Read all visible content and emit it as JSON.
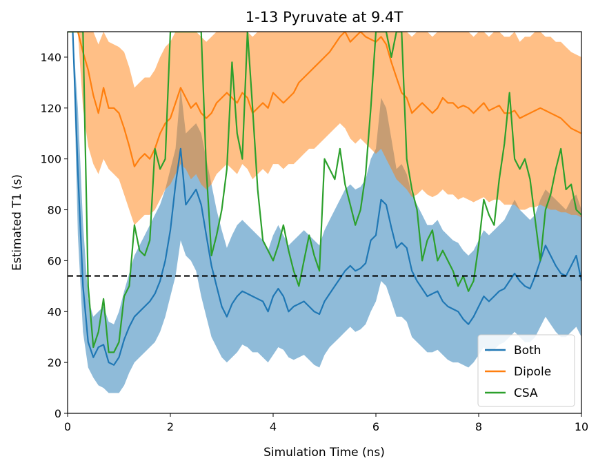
{
  "chart_data": {
    "type": "line",
    "title": "1-13 Pyruvate at 9.4T",
    "xlabel": "Simulation Time (ns)",
    "ylabel": "Estimated T1 (s)",
    "xlim": [
      0,
      10
    ],
    "ylim": [
      0,
      150
    ],
    "x_ticks": [
      0,
      2,
      4,
      6,
      8,
      10
    ],
    "y_ticks": [
      0,
      20,
      40,
      60,
      80,
      100,
      120,
      140
    ],
    "legend_position": "lower-right",
    "grid": false,
    "reference_line": {
      "y": 54,
      "style": "dashed",
      "color": "#000000"
    },
    "series": [
      {
        "name": "Both",
        "color": "#1f77b4",
        "band_color": "#1f77b4",
        "x": [
          0.0,
          0.1,
          0.2,
          0.3,
          0.4,
          0.5,
          0.6,
          0.7,
          0.8,
          0.9,
          1.0,
          1.1,
          1.2,
          1.3,
          1.4,
          1.5,
          1.6,
          1.7,
          1.8,
          1.9,
          2.0,
          2.1,
          2.2,
          2.3,
          2.4,
          2.5,
          2.6,
          2.7,
          2.8,
          2.9,
          3.0,
          3.1,
          3.2,
          3.3,
          3.4,
          3.5,
          3.6,
          3.7,
          3.8,
          3.9,
          4.0,
          4.1,
          4.2,
          4.3,
          4.4,
          4.5,
          4.6,
          4.7,
          4.8,
          4.9,
          5.0,
          5.1,
          5.2,
          5.3,
          5.4,
          5.5,
          5.6,
          5.7,
          5.8,
          5.9,
          6.0,
          6.1,
          6.2,
          6.3,
          6.4,
          6.5,
          6.6,
          6.7,
          6.8,
          6.9,
          7.0,
          7.1,
          7.2,
          7.3,
          7.4,
          7.5,
          7.6,
          7.7,
          7.8,
          7.9,
          8.0,
          8.1,
          8.2,
          8.3,
          8.4,
          8.5,
          8.6,
          8.7,
          8.8,
          8.9,
          9.0,
          9.1,
          9.2,
          9.3,
          9.4,
          9.5,
          9.6,
          9.7,
          9.8,
          9.9,
          10.0
        ],
        "y": [
          150,
          150,
          95,
          50,
          28,
          22,
          26,
          27,
          20,
          19,
          22,
          29,
          34,
          38,
          40,
          42,
          44,
          47,
          52,
          60,
          72,
          90,
          104,
          82,
          85,
          88,
          82,
          70,
          58,
          50,
          42,
          38,
          43,
          46,
          48,
          47,
          46,
          45,
          44,
          40,
          46,
          49,
          46,
          40,
          42,
          43,
          44,
          42,
          40,
          39,
          44,
          47,
          50,
          53,
          56,
          58,
          56,
          57,
          59,
          68,
          70,
          84,
          82,
          73,
          65,
          67,
          65,
          56,
          52,
          49,
          46,
          47,
          48,
          44,
          42,
          41,
          40,
          37,
          35,
          38,
          42,
          46,
          44,
          46,
          48,
          49,
          52,
          55,
          52,
          50,
          49,
          54,
          60,
          66,
          62,
          58,
          55,
          54,
          58,
          62,
          52
        ],
        "lower": [
          150,
          150,
          70,
          32,
          18,
          14,
          11,
          10,
          8,
          8,
          8,
          11,
          16,
          20,
          22,
          24,
          26,
          28,
          32,
          38,
          46,
          54,
          68,
          62,
          60,
          56,
          46,
          38,
          30,
          26,
          22,
          20,
          22,
          24,
          27,
          26,
          24,
          24,
          22,
          20,
          23,
          26,
          25,
          22,
          21,
          22,
          23,
          21,
          19,
          18,
          23,
          26,
          28,
          30,
          32,
          34,
          32,
          33,
          35,
          40,
          44,
          52,
          50,
          44,
          38,
          38,
          36,
          30,
          28,
          26,
          24,
          24,
          25,
          23,
          21,
          20,
          20,
          19,
          18,
          20,
          23,
          26,
          24,
          25,
          27,
          28,
          30,
          32,
          30,
          28,
          28,
          30,
          34,
          38,
          35,
          32,
          30,
          30,
          32,
          34,
          30
        ],
        "upper": [
          150,
          150,
          120,
          75,
          45,
          38,
          40,
          42,
          36,
          35,
          40,
          48,
          55,
          62,
          66,
          70,
          74,
          78,
          82,
          88,
          96,
          104,
          128,
          110,
          112,
          114,
          110,
          100,
          90,
          80,
          72,
          65,
          70,
          74,
          76,
          74,
          72,
          70,
          68,
          64,
          70,
          74,
          70,
          66,
          68,
          70,
          72,
          70,
          68,
          66,
          72,
          76,
          80,
          84,
          88,
          90,
          88,
          89,
          92,
          100,
          104,
          124,
          120,
          108,
          96,
          98,
          94,
          86,
          82,
          78,
          74,
          74,
          76,
          72,
          70,
          68,
          67,
          64,
          62,
          64,
          68,
          72,
          70,
          72,
          74,
          76,
          80,
          84,
          80,
          78,
          76,
          78,
          84,
          88,
          86,
          84,
          82,
          80,
          84,
          86,
          80
        ]
      },
      {
        "name": "Dipole",
        "color": "#ff7f0e",
        "band_color": "#ff7f0e",
        "x": [
          0.0,
          0.1,
          0.2,
          0.3,
          0.4,
          0.5,
          0.6,
          0.7,
          0.8,
          0.9,
          1.0,
          1.1,
          1.2,
          1.3,
          1.4,
          1.5,
          1.6,
          1.7,
          1.8,
          1.9,
          2.0,
          2.1,
          2.2,
          2.3,
          2.4,
          2.5,
          2.6,
          2.7,
          2.8,
          2.9,
          3.0,
          3.1,
          3.2,
          3.3,
          3.4,
          3.5,
          3.6,
          3.7,
          3.8,
          3.9,
          4.0,
          4.1,
          4.2,
          4.3,
          4.4,
          4.5,
          4.6,
          4.7,
          4.8,
          4.9,
          5.0,
          5.1,
          5.2,
          5.3,
          5.4,
          5.5,
          5.6,
          5.7,
          5.8,
          5.9,
          6.0,
          6.1,
          6.2,
          6.3,
          6.4,
          6.5,
          6.6,
          6.7,
          6.8,
          6.9,
          7.0,
          7.1,
          7.2,
          7.3,
          7.4,
          7.5,
          7.6,
          7.7,
          7.8,
          7.9,
          8.0,
          8.1,
          8.2,
          8.3,
          8.4,
          8.5,
          8.6,
          8.7,
          8.8,
          8.9,
          9.0,
          9.1,
          9.2,
          9.3,
          9.4,
          9.5,
          9.6,
          9.7,
          9.8,
          9.9,
          10.0
        ],
        "y": [
          150,
          150,
          150,
          142,
          135,
          125,
          118,
          128,
          120,
          120,
          118,
          112,
          105,
          97,
          100,
          102,
          100,
          104,
          110,
          114,
          116,
          122,
          128,
          124,
          120,
          122,
          118,
          116,
          118,
          122,
          124,
          126,
          124,
          122,
          126,
          124,
          118,
          120,
          122,
          120,
          126,
          124,
          122,
          124,
          126,
          130,
          132,
          134,
          136,
          138,
          140,
          142,
          145,
          148,
          150,
          146,
          148,
          150,
          148,
          147,
          146,
          148,
          145,
          138,
          132,
          126,
          124,
          118,
          120,
          122,
          120,
          118,
          120,
          124,
          122,
          122,
          120,
          121,
          120,
          118,
          120,
          122,
          119,
          120,
          121,
          118,
          118,
          119,
          116,
          117,
          118,
          119,
          120,
          119,
          118,
          117,
          116,
          114,
          112,
          111,
          110
        ],
        "lower": [
          150,
          150,
          150,
          120,
          105,
          98,
          94,
          100,
          96,
          94,
          92,
          86,
          80,
          74,
          76,
          78,
          78,
          80,
          84,
          88,
          90,
          94,
          98,
          96,
          92,
          94,
          90,
          88,
          90,
          94,
          96,
          98,
          96,
          94,
          98,
          96,
          92,
          94,
          96,
          94,
          98,
          98,
          96,
          98,
          98,
          100,
          102,
          104,
          104,
          106,
          108,
          110,
          112,
          114,
          112,
          108,
          106,
          108,
          106,
          104,
          102,
          104,
          100,
          96,
          92,
          90,
          88,
          85,
          86,
          88,
          86,
          85,
          86,
          88,
          86,
          86,
          84,
          85,
          84,
          83,
          84,
          85,
          83,
          84,
          84,
          82,
          82,
          82,
          80,
          80,
          81,
          81,
          82,
          81,
          80,
          80,
          79,
          79,
          78,
          78,
          77
        ],
        "upper": [
          150,
          150,
          150,
          150,
          150,
          150,
          145,
          150,
          146,
          145,
          144,
          142,
          136,
          128,
          130,
          132,
          132,
          135,
          140,
          144,
          146,
          150,
          150,
          150,
          150,
          150,
          148,
          146,
          148,
          150,
          150,
          150,
          150,
          150,
          150,
          150,
          148,
          150,
          150,
          150,
          150,
          150,
          150,
          150,
          150,
          150,
          150,
          150,
          150,
          150,
          150,
          150,
          150,
          150,
          150,
          150,
          150,
          150,
          150,
          150,
          150,
          150,
          150,
          150,
          150,
          150,
          150,
          148,
          150,
          150,
          150,
          148,
          150,
          150,
          150,
          150,
          150,
          150,
          150,
          148,
          150,
          150,
          148,
          150,
          150,
          148,
          148,
          150,
          146,
          148,
          148,
          150,
          150,
          148,
          148,
          146,
          146,
          144,
          142,
          141,
          140
        ]
      },
      {
        "name": "CSA",
        "color": "#2ca02c",
        "x": [
          0.0,
          0.1,
          0.2,
          0.3,
          0.4,
          0.5,
          0.6,
          0.7,
          0.8,
          0.9,
          1.0,
          1.1,
          1.2,
          1.3,
          1.4,
          1.5,
          1.6,
          1.7,
          1.8,
          1.9,
          2.0,
          2.1,
          2.2,
          2.3,
          2.4,
          2.5,
          2.6,
          2.7,
          2.8,
          2.9,
          3.0,
          3.1,
          3.2,
          3.3,
          3.4,
          3.5,
          3.6,
          3.7,
          3.8,
          3.9,
          4.0,
          4.1,
          4.2,
          4.3,
          4.4,
          4.5,
          4.6,
          4.7,
          4.8,
          4.9,
          5.0,
          5.1,
          5.2,
          5.3,
          5.4,
          5.5,
          5.6,
          5.7,
          5.8,
          5.9,
          6.0,
          6.1,
          6.2,
          6.3,
          6.4,
          6.5,
          6.6,
          6.7,
          6.8,
          6.9,
          7.0,
          7.1,
          7.2,
          7.3,
          7.4,
          7.5,
          7.6,
          7.7,
          7.8,
          7.9,
          8.0,
          8.1,
          8.2,
          8.3,
          8.4,
          8.5,
          8.6,
          8.7,
          8.8,
          8.9,
          9.0,
          9.1,
          9.2,
          9.3,
          9.4,
          9.5,
          9.6,
          9.7,
          9.8,
          9.9,
          10.0
        ],
        "y": [
          150,
          150,
          150,
          150,
          50,
          26,
          32,
          45,
          24,
          24,
          28,
          46,
          50,
          74,
          64,
          62,
          68,
          104,
          96,
          100,
          150,
          150,
          150,
          150,
          150,
          150,
          150,
          96,
          62,
          70,
          80,
          96,
          138,
          110,
          100,
          150,
          120,
          88,
          68,
          64,
          60,
          66,
          74,
          64,
          56,
          50,
          60,
          70,
          62,
          56,
          100,
          96,
          92,
          104,
          90,
          82,
          74,
          80,
          94,
          120,
          150,
          150,
          150,
          140,
          150,
          150,
          100,
          88,
          80,
          60,
          68,
          72,
          60,
          64,
          60,
          56,
          50,
          54,
          48,
          52,
          66,
          84,
          78,
          74,
          92,
          106,
          126,
          100,
          96,
          100,
          92,
          76,
          60,
          80,
          86,
          96,
          104,
          88,
          90,
          80,
          78
        ]
      }
    ]
  }
}
